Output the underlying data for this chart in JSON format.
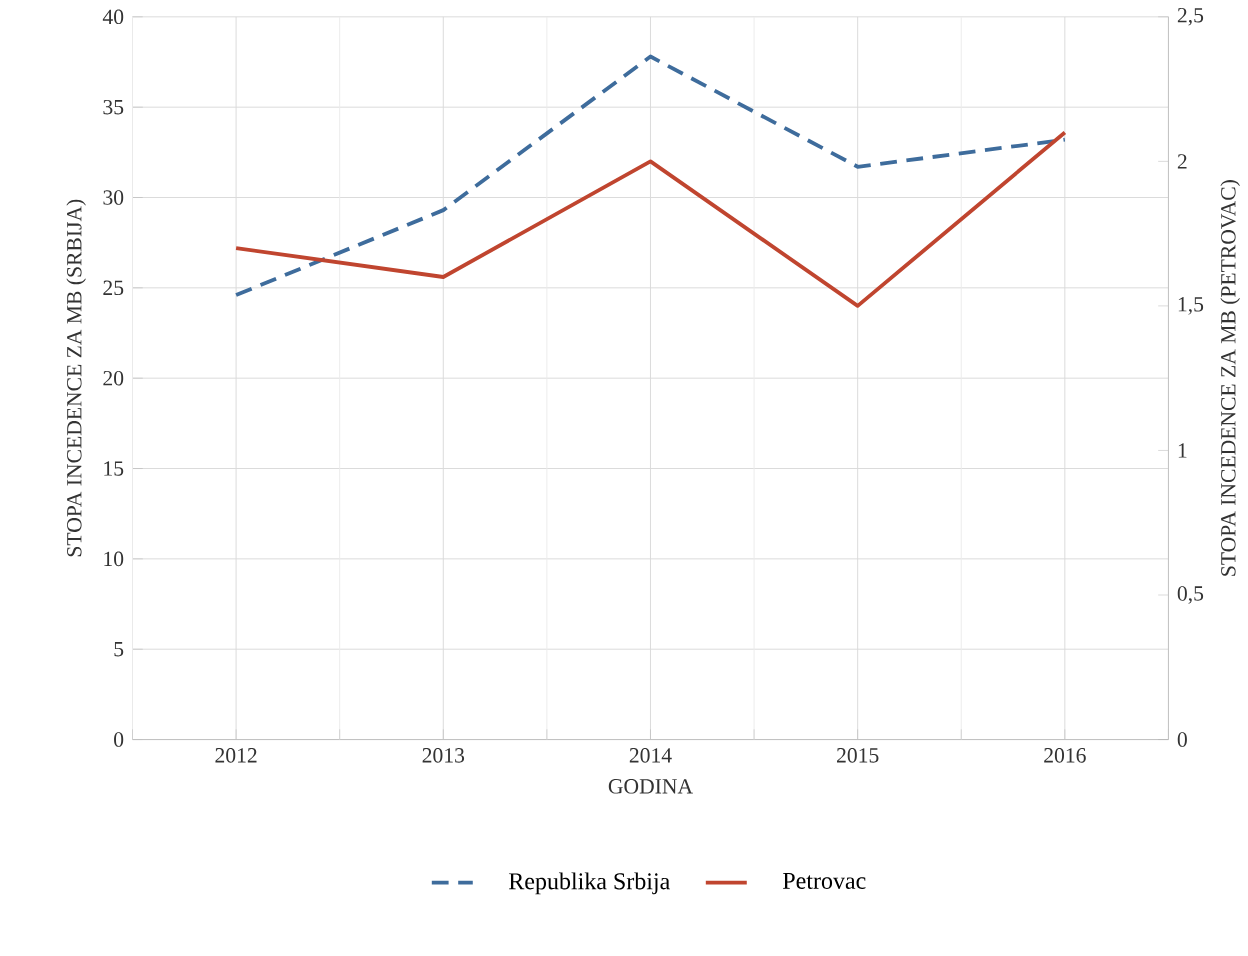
{
  "chart_data": {
    "type": "line",
    "xlabel": "GODINA",
    "ylabel": "STOPA INCEDENCE ZA MB (SRBIJA)",
    "y2label": "STOPA INCEDENCE ZA MB (PETROVAC)",
    "categories": [
      "2012",
      "2013",
      "2014",
      "2015",
      "2016"
    ],
    "series": [
      {
        "name": "Republika Srbija",
        "color": "#3e6c9c",
        "line_style": "dashed",
        "values": [
          24.6,
          29.3,
          37.8,
          31.7,
          33.2
        ]
      },
      {
        "name": "Petrovac",
        "color": "#c0452f",
        "line_style": "solid",
        "axis": "y2",
        "values": [
          1.7,
          1.6,
          2.0,
          1.5,
          2.1
        ]
      }
    ],
    "ylim": [
      0,
      40
    ],
    "yticks": [
      0,
      5,
      10,
      15,
      20,
      25,
      30,
      35,
      40
    ],
    "y2lim": [
      0,
      2.5
    ],
    "y2ticks": [
      0,
      {
        "value": 0.5,
        "label": "0,5"
      },
      1,
      {
        "value": 1.5,
        "label": "1,5"
      },
      2,
      {
        "value": 2.5,
        "label": "2,5"
      }
    ],
    "grid": true,
    "legend": "bottom",
    "marker": "none"
  }
}
